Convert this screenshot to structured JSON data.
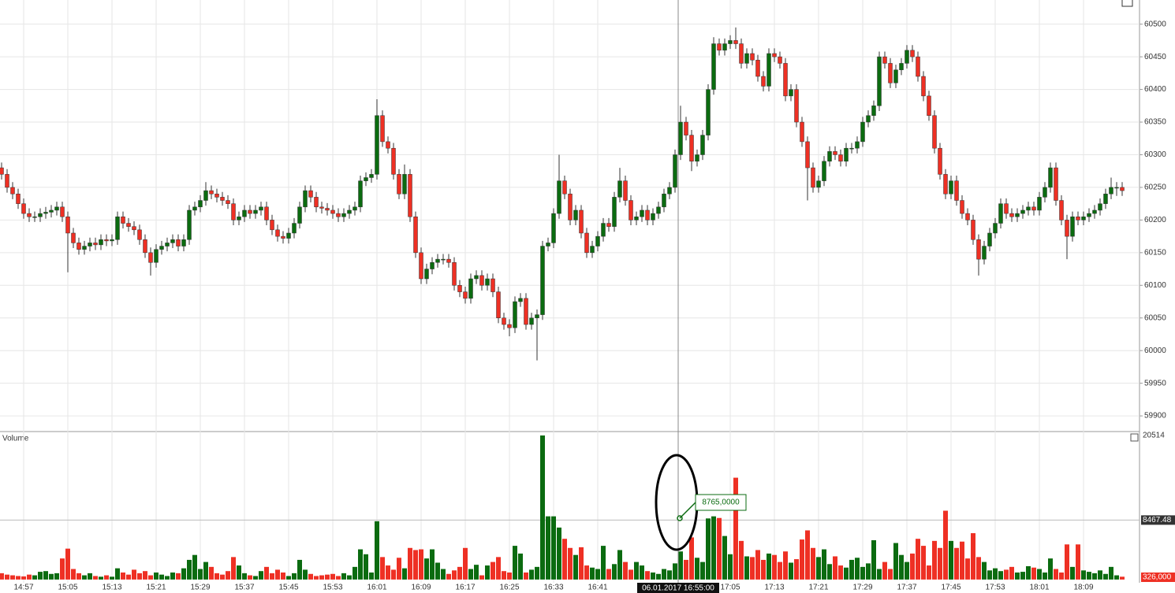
{
  "chart_data": {
    "type": "candlestick",
    "categories": [
      null,
      null,
      null,
      null,
      "14:57",
      null,
      null,
      null,
      null,
      null,
      null,
      null,
      "15:05",
      null,
      null,
      null,
      null,
      null,
      null,
      null,
      "15:13",
      null,
      null,
      null,
      null,
      null,
      null,
      null,
      "15:21",
      null,
      null,
      null,
      null,
      null,
      null,
      null,
      "15:29",
      null,
      null,
      null,
      null,
      null,
      null,
      null,
      "15:37",
      null,
      null,
      null,
      null,
      null,
      null,
      null,
      "15:45",
      null,
      null,
      null,
      null,
      null,
      null,
      null,
      "15:53",
      null,
      null,
      null,
      null,
      null,
      null,
      null,
      "16:01",
      null,
      null,
      null,
      null,
      null,
      null,
      null,
      "16:09",
      null,
      null,
      null,
      null,
      null,
      null,
      null,
      "16:17",
      null,
      null,
      null,
      null,
      null,
      null,
      null,
      "16:25",
      null,
      null,
      null,
      null,
      null,
      null,
      null,
      "16:33",
      null,
      null,
      null,
      null,
      null,
      null,
      null,
      "16:41",
      null,
      null,
      null,
      null,
      null,
      null,
      null,
      null,
      null,
      null,
      null,
      null,
      null,
      null,
      null,
      null,
      null,
      null,
      null,
      null,
      null,
      null,
      null,
      "17:05",
      null,
      null,
      null,
      null,
      null,
      null,
      null,
      "17:13",
      null,
      null,
      null,
      null,
      null,
      null,
      null,
      "17:21",
      null,
      null,
      null,
      null,
      null,
      null,
      null,
      "17:29",
      null,
      null,
      null,
      null,
      null,
      null,
      null,
      "17:37",
      null,
      null,
      null,
      null,
      null,
      null,
      null,
      "17:45",
      null,
      null,
      null,
      null,
      null,
      null,
      null,
      "17:53",
      null,
      null,
      null,
      null,
      null,
      null,
      null,
      "18:01",
      null,
      null,
      null,
      null,
      null,
      null,
      null,
      "18:09",
      null,
      null,
      null,
      null,
      null,
      null,
      null
    ],
    "open": [
      60280,
      60270,
      60250,
      60240,
      60225,
      60210,
      60205,
      60205,
      60210,
      60212,
      60215,
      60220,
      60205,
      60180,
      60165,
      60155,
      60160,
      60165,
      60162,
      60170,
      60168,
      60170,
      60205,
      60195,
      60190,
      60185,
      60170,
      60150,
      60135,
      60155,
      60160,
      60165,
      60170,
      60160,
      60170,
      60215,
      60220,
      60230,
      60245,
      60240,
      60235,
      60230,
      60225,
      60200,
      60205,
      60215,
      60210,
      60215,
      60220,
      60200,
      60185,
      60175,
      60172,
      60180,
      60195,
      60220,
      60245,
      60235,
      60220,
      60218,
      60215,
      60210,
      60205,
      60210,
      60215,
      60220,
      60260,
      60265,
      60270,
      60360,
      60320,
      60310,
      60270,
      60240,
      60270,
      60205,
      60150,
      60110,
      60125,
      60135,
      60140,
      60140,
      60135,
      60100,
      60090,
      60080,
      60110,
      60115,
      60100,
      60110,
      60090,
      60050,
      60040,
      60035,
      60075,
      60080,
      60040,
      60050,
      60055,
      60160,
      60165,
      60210,
      60260,
      60240,
      60200,
      60215,
      60180,
      60150,
      60160,
      60175,
      60195,
      60190,
      60235,
      60260,
      60230,
      60200,
      60205,
      60215,
      60200,
      60210,
      60220,
      60240,
      60250,
      60300,
      60350,
      60330,
      60290,
      60300,
      60330,
      60400,
      60470,
      60460,
      60470,
      60475,
      60470,
      60440,
      60455,
      60445,
      60420,
      60405,
      60455,
      60450,
      60440,
      60390,
      60400,
      60350,
      60320,
      60280,
      60250,
      60260,
      60290,
      60305,
      60300,
      60290,
      60310,
      60310,
      60320,
      60350,
      60360,
      60375,
      60450,
      60440,
      60410,
      60430,
      60440,
      60460,
      60450,
      60420,
      60390,
      60360,
      60310,
      60270,
      60240,
      60260,
      60230,
      60210,
      60200,
      60170,
      60140,
      60160,
      60180,
      60195,
      60225,
      60210,
      60205,
      60210,
      60215,
      60220,
      60215,
      60235,
      60250,
      60280,
      60230,
      60200,
      60175,
      60205,
      60200,
      60205,
      60210,
      60215,
      60225,
      60240,
      60250,
      60250
    ],
    "high": [
      60288,
      60278,
      60258,
      60248,
      60233,
      60218,
      60213,
      60218,
      60220,
      60223,
      60228,
      60228,
      60213,
      60188,
      60173,
      60168,
      60173,
      60173,
      60178,
      60178,
      60178,
      60213,
      60213,
      60203,
      60198,
      60193,
      60178,
      60158,
      60163,
      60168,
      60173,
      60178,
      60178,
      60178,
      60223,
      60228,
      60238,
      60258,
      60253,
      60248,
      60243,
      60238,
      60233,
      60213,
      60223,
      60223,
      60223,
      60228,
      60228,
      60208,
      60193,
      60183,
      60188,
      60203,
      60228,
      60253,
      60253,
      60243,
      60228,
      60226,
      60223,
      60218,
      60218,
      60223,
      60228,
      60268,
      60273,
      60278,
      60385,
      60368,
      60328,
      60318,
      60278,
      60285,
      60278,
      60213,
      60158,
      60133,
      60143,
      60148,
      60148,
      60148,
      60143,
      60108,
      60098,
      60118,
      60123,
      60123,
      60118,
      60118,
      60098,
      60058,
      60048,
      60083,
      60088,
      60088,
      60058,
      60063,
      60168,
      60173,
      60218,
      60300,
      60268,
      60248,
      60223,
      60223,
      60188,
      60168,
      60183,
      60203,
      60203,
      60243,
      60280,
      60268,
      60238,
      60213,
      60223,
      60223,
      60218,
      60228,
      60248,
      60258,
      60308,
      60375,
      60358,
      60338,
      60308,
      60338,
      60408,
      60480,
      60478,
      60478,
      60483,
      60495,
      60478,
      60463,
      60463,
      60453,
      60428,
      60463,
      60463,
      60458,
      60448,
      60408,
      60408,
      60358,
      60328,
      60288,
      60268,
      60298,
      60313,
      60313,
      60308,
      60318,
      60318,
      60328,
      60358,
      60368,
      60383,
      60458,
      60458,
      60448,
      60438,
      60448,
      60468,
      60468,
      60458,
      60428,
      60398,
      60368,
      60318,
      60278,
      60268,
      60268,
      60238,
      60218,
      60208,
      60178,
      60168,
      60188,
      60203,
      60233,
      60233,
      60218,
      60218,
      60223,
      60228,
      60228,
      60243,
      60258,
      60288,
      60288,
      60238,
      60208,
      60213,
      60213,
      60213,
      60218,
      60223,
      60233,
      60248,
      60265,
      60258,
      60258
    ],
    "low": [
      60262,
      60242,
      60232,
      60217,
      60202,
      60197,
      60197,
      60197,
      60202,
      60204,
      60207,
      60197,
      60120,
      60157,
      60147,
      60147,
      60152,
      60154,
      60154,
      60160,
      60160,
      60162,
      60187,
      60182,
      60177,
      60162,
      60142,
      60115,
      60127,
      60147,
      60152,
      60157,
      60152,
      60152,
      60162,
      60207,
      60212,
      60222,
      60232,
      60227,
      60222,
      60217,
      60192,
      60192,
      60197,
      60202,
      60202,
      60207,
      60192,
      60177,
      60167,
      60164,
      60164,
      60172,
      60187,
      60212,
      60227,
      60212,
      60210,
      60207,
      60202,
      60197,
      60197,
      60202,
      60207,
      60212,
      60252,
      60257,
      60262,
      60312,
      60302,
      60262,
      60232,
      60232,
      60197,
      60142,
      60102,
      60102,
      60117,
      60127,
      60132,
      60127,
      60092,
      60082,
      60072,
      60072,
      60102,
      60092,
      60092,
      60082,
      60042,
      60032,
      60022,
      60027,
      60067,
      60032,
      60032,
      59985,
      60047,
      60152,
      60157,
      60202,
      60232,
      60192,
      60192,
      60172,
      60142,
      60142,
      60152,
      60167,
      60182,
      60182,
      60227,
      60222,
      60192,
      60192,
      60197,
      60192,
      60192,
      60202,
      60212,
      60232,
      60242,
      60292,
      60322,
      60275,
      60282,
      60292,
      60322,
      60392,
      60452,
      60452,
      60462,
      60462,
      60432,
      60432,
      60437,
      60412,
      60397,
      60397,
      60442,
      60432,
      60382,
      60382,
      60342,
      60312,
      60230,
      60242,
      60242,
      60252,
      60282,
      60292,
      60282,
      60282,
      60302,
      60302,
      60312,
      60342,
      60352,
      60367,
      60432,
      60402,
      60402,
      60422,
      60432,
      60442,
      60412,
      60382,
      60352,
      60302,
      60262,
      60232,
      60232,
      60222,
      60202,
      60192,
      60162,
      60115,
      60132,
      60152,
      60172,
      60187,
      60202,
      60197,
      60197,
      60202,
      60207,
      60207,
      60207,
      60227,
      60242,
      60222,
      60192,
      60140,
      60167,
      60192,
      60192,
      60197,
      60202,
      60207,
      60217,
      60232,
      60237,
      60237
    ],
    "close": [
      60270,
      60250,
      60240,
      60225,
      60210,
      60205,
      60205,
      60210,
      60212,
      60215,
      60220,
      60205,
      60180,
      60165,
      60155,
      60160,
      60165,
      60162,
      60170,
      60168,
      60170,
      60205,
      60195,
      60190,
      60185,
      60170,
      60150,
      60135,
      60155,
      60160,
      60165,
      60170,
      60160,
      60170,
      60215,
      60220,
      60230,
      60245,
      60240,
      60235,
      60230,
      60225,
      60200,
      60205,
      60215,
      60210,
      60215,
      60220,
      60200,
      60185,
      60175,
      60172,
      60180,
      60195,
      60220,
      60245,
      60235,
      60220,
      60218,
      60215,
      60210,
      60205,
      60210,
      60215,
      60220,
      60260,
      60265,
      60270,
      60360,
      60320,
      60310,
      60270,
      60240,
      60270,
      60205,
      60150,
      60110,
      60125,
      60135,
      60140,
      60140,
      60135,
      60100,
      60090,
      60080,
      60110,
      60115,
      60100,
      60110,
      60090,
      60050,
      60040,
      60035,
      60075,
      60080,
      60040,
      60050,
      60055,
      60160,
      60165,
      60210,
      60260,
      60240,
      60200,
      60215,
      60180,
      60150,
      60160,
      60175,
      60195,
      60190,
      60235,
      60260,
      60230,
      60200,
      60205,
      60215,
      60200,
      60210,
      60220,
      60240,
      60250,
      60300,
      60350,
      60330,
      60290,
      60300,
      60330,
      60400,
      60470,
      60460,
      60470,
      60475,
      60470,
      60440,
      60455,
      60445,
      60420,
      60405,
      60455,
      60450,
      60440,
      60390,
      60400,
      60350,
      60320,
      60280,
      60250,
      60260,
      60290,
      60305,
      60300,
      60290,
      60310,
      60310,
      60320,
      60350,
      60360,
      60375,
      60450,
      60440,
      60410,
      60430,
      60440,
      60460,
      60450,
      60420,
      60390,
      60360,
      60310,
      60270,
      60240,
      60260,
      60230,
      60210,
      60200,
      60170,
      60140,
      60160,
      60180,
      60195,
      60225,
      60210,
      60205,
      60210,
      60215,
      60220,
      60215,
      60235,
      60250,
      60280,
      60230,
      60200,
      60175,
      60205,
      60200,
      60205,
      60210,
      60215,
      60225,
      60240,
      60250,
      60250,
      60245
    ],
    "up_color": "#0b6b10",
    "down_color": "#ee3024",
    "grid": true,
    "ylim": [
      59876,
      60537
    ],
    "yticks": [
      59900,
      59950,
      60000,
      60050,
      60100,
      60150,
      60200,
      60250,
      60300,
      60350,
      60400,
      60450,
      60500
    ],
    "volume": {
      "type": "bar",
      "title": "Volume",
      "values": [
        900,
        700,
        600,
        500,
        450,
        700,
        600,
        1100,
        1200,
        800,
        900,
        3000,
        4400,
        1500,
        900,
        600,
        900,
        500,
        400,
        600,
        400,
        1600,
        1000,
        700,
        1400,
        900,
        1200,
        600,
        1000,
        700,
        500,
        1000,
        900,
        1600,
        2800,
        3500,
        1500,
        2500,
        1800,
        900,
        700,
        1200,
        3200,
        2000,
        900,
        600,
        500,
        1200,
        1800,
        900,
        1400,
        1000,
        500,
        900,
        2800,
        1400,
        800,
        500,
        600,
        700,
        800,
        500,
        900,
        600,
        1800,
        4300,
        3600,
        1000,
        8300,
        3200,
        2000,
        1400,
        3100,
        1600,
        4500,
        4200,
        4300,
        3000,
        4300,
        2400,
        1500,
        800,
        1300,
        1800,
        4500,
        1500,
        2100,
        600,
        2000,
        2500,
        3200,
        1200,
        1000,
        4800,
        3700,
        1000,
        1400,
        1800,
        20514,
        9000,
        9000,
        7400,
        5800,
        4500,
        3500,
        4600,
        2000,
        1700,
        1500,
        4800,
        1500,
        2200,
        4200,
        2500,
        1400,
        2500,
        2000,
        1200,
        1000,
        800,
        1500,
        1300,
        2300,
        4000,
        2800,
        6000,
        3100,
        2500,
        8700,
        9000,
        8765,
        6200,
        3600,
        14500,
        5500,
        3300,
        3200,
        4200,
        2800,
        3700,
        3500,
        2500,
        4000,
        2400,
        2900,
        5700,
        7000,
        4500,
        3200,
        4300,
        2200,
        3300,
        2000,
        1700,
        2800,
        3100,
        1800,
        2300,
        5600,
        1500,
        2500,
        1500,
        5200,
        3500,
        2500,
        3700,
        5800,
        4800,
        2000,
        5500,
        4500,
        9800,
        5500,
        4500,
        5400,
        3000,
        6600,
        3200,
        2500,
        1300,
        1600,
        1200,
        1400,
        1800,
        1000,
        1100,
        1900,
        1700,
        1500,
        1000,
        3000,
        1500,
        1000,
        5000,
        1800,
        5000,
        1300,
        1100,
        900,
        1300,
        800,
        1800,
        600,
        400
      ],
      "ylim": [
        -460,
        21070
      ],
      "yticks": [
        20514,
        8467.48,
        {
          "value": 326,
          "label": "326,000"
        }
      ]
    },
    "crosshair": {
      "label": "06.01.2017 16:55:00",
      "tooltip": "8765,0000"
    }
  }
}
